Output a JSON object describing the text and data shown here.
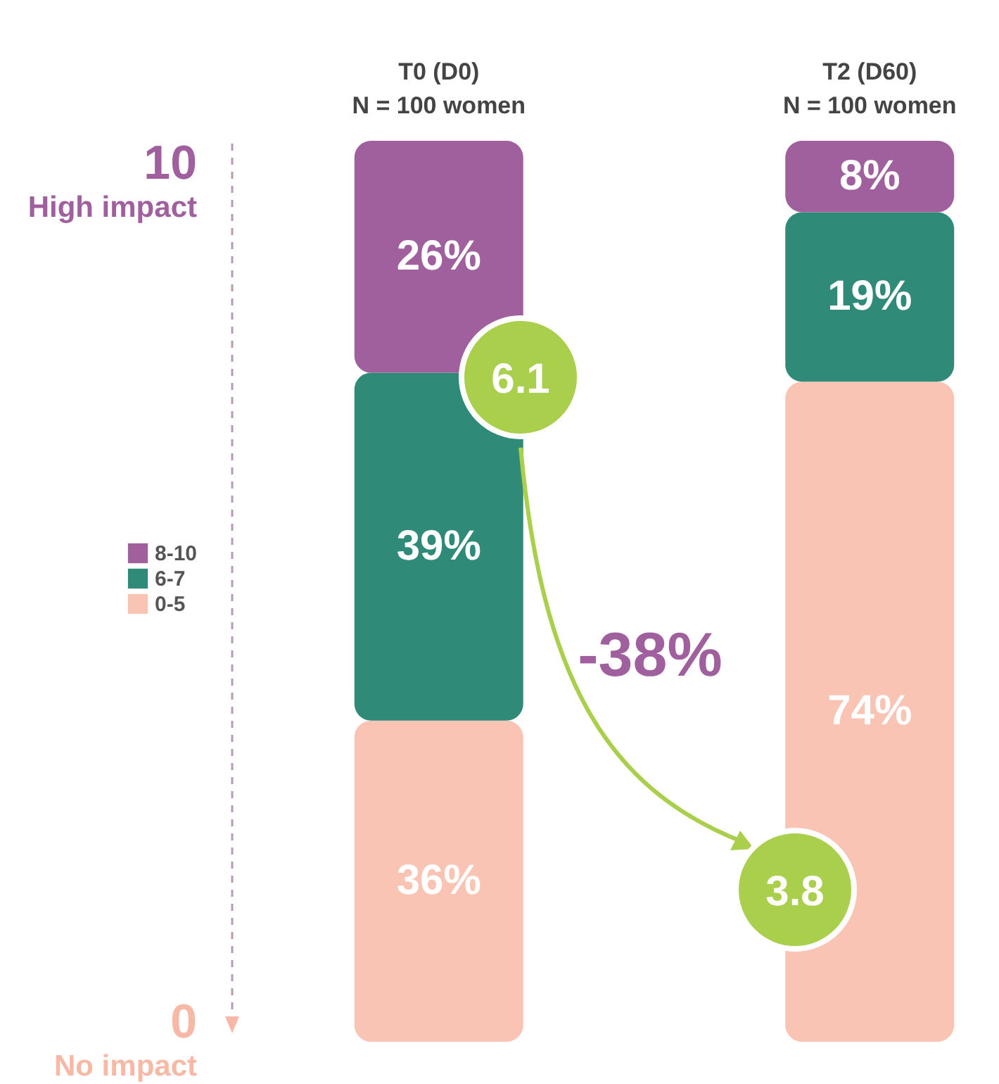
{
  "chart_data": {
    "type": "bar",
    "stacked": true,
    "subtitle": "N = 100 women",
    "categories": [
      "T0 (D0)",
      "T2 (D60)"
    ],
    "series": [
      {
        "name": "0-5",
        "color": "#f9c4b4",
        "values": [
          36,
          74
        ],
        "value_labels": [
          "36%",
          "74%"
        ]
      },
      {
        "name": "6-7",
        "color": "#2f8a78",
        "values": [
          39,
          19
        ],
        "value_labels": [
          "39%",
          "19%"
        ]
      },
      {
        "name": "8-10",
        "color": "#a0609e",
        "values": [
          26,
          8
        ],
        "value_labels": [
          "26%",
          "8%"
        ]
      }
    ],
    "legend": "left",
    "tick_labels": "x",
    "annotations": [
      "10",
      "High impact",
      "0",
      "No impact",
      "6.1",
      "3.8",
      "-38%"
    ]
  }
}
